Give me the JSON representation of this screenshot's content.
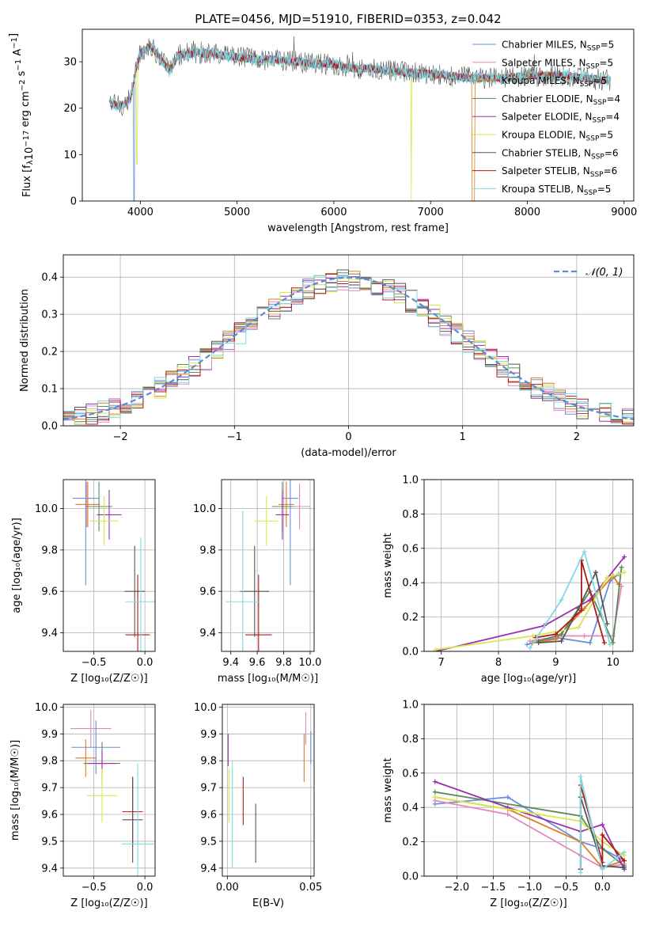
{
  "title": "PLATE=0456, MJD=51910, FIBERID=0353, z=0.042",
  "colors": {
    "chabrier_miles": "#6a8fd8",
    "salpeter_miles": "#e387c0",
    "kroupa_miles": "#e07b20",
    "chabrier_elodie": "#5b8a5b",
    "salpeter_elodie": "#9b2fae",
    "kroupa_elodie": "#d8e84a",
    "chabrier_stelib": "#555555",
    "salpeter_stelib": "#b01818",
    "kroupa_stelib": "#7fdbe0",
    "normal_curve": "#5b8ad4",
    "grid": "#b0b0b0"
  },
  "legend": [
    {
      "label": "Chabrier MILES, N",
      "sub": "SSP",
      "tail": "=5",
      "color_key": "chabrier_miles"
    },
    {
      "label": "Salpeter MILES, N",
      "sub": "SSP",
      "tail": "=5",
      "color_key": "salpeter_miles"
    },
    {
      "label": "Kroupa MILES, N",
      "sub": "SSP",
      "tail": "=5",
      "color_key": "kroupa_miles"
    },
    {
      "label": "Chabrier ELODIE, N",
      "sub": "SSP",
      "tail": "=4",
      "color_key": "chabrier_elodie"
    },
    {
      "label": "Salpeter ELODIE, N",
      "sub": "SSP",
      "tail": "=4",
      "color_key": "salpeter_elodie"
    },
    {
      "label": "Kroupa ELODIE, N",
      "sub": "SSP",
      "tail": "=5",
      "color_key": "kroupa_elodie"
    },
    {
      "label": "Chabrier STELIB, N",
      "sub": "SSP",
      "tail": "=6",
      "color_key": "chabrier_stelib"
    },
    {
      "label": "Salpeter STELIB, N",
      "sub": "SSP",
      "tail": "=6",
      "color_key": "salpeter_stelib"
    },
    {
      "label": "Kroupa STELIB, N",
      "sub": "SSP",
      "tail": "=5",
      "color_key": "kroupa_stelib"
    }
  ],
  "normal_legend": "𝒩(0, 1)",
  "chart_data": [
    {
      "id": "spectrum",
      "type": "line",
      "xlabel": "wavelength [Angstrom, rest frame]",
      "ylabel": "Flux [f",
      "ylabel_parts": [
        "Flux [f",
        "λ",
        "10",
        "−17",
        " erg cm",
        "−2",
        " s",
        "−1",
        " A",
        "−1",
        "]"
      ],
      "xlim": [
        3400,
        9100
      ],
      "ylim": [
        0,
        37
      ],
      "xticks": [
        4000,
        5000,
        6000,
        7000,
        8000,
        9000
      ],
      "yticks": [
        0,
        10,
        20,
        30
      ],
      "continuum_x": [
        3680,
        3800,
        3900,
        3960,
        4000,
        4100,
        4200,
        4300,
        4400,
        4600,
        4800,
        5000,
        5200,
        5400,
        5600,
        5800,
        6000,
        6200,
        6400,
        6600,
        6800,
        7000,
        7200,
        7400,
        7600,
        7800,
        8000,
        8200,
        8400,
        8600,
        8800
      ],
      "continuum_y": [
        21,
        20.5,
        22,
        29,
        32,
        33.5,
        31,
        28,
        31.5,
        32,
        31.5,
        31,
        30.5,
        30.5,
        30,
        29.5,
        29.5,
        28.5,
        28.5,
        28,
        27.5,
        27.5,
        27,
        26.5,
        26.5,
        26.5,
        27,
        27,
        27,
        26.5,
        26
      ],
      "drops": [
        {
          "series": "chabrier_miles",
          "x": 3935,
          "y": 0
        },
        {
          "series": "kroupa_elodie",
          "x": 3965,
          "y": 8
        },
        {
          "series": "kroupa_elodie",
          "x": 6800,
          "y": 0
        },
        {
          "series": "kroupa_miles",
          "x": 7430,
          "y": 0
        }
      ]
    },
    {
      "id": "residuals",
      "type": "histogram",
      "xlabel": "(data-model)/error",
      "ylabel": "Normed distribution",
      "xlim": [
        -2.5,
        2.5
      ],
      "ylim": [
        0,
        0.46
      ],
      "xticks": [
        -2,
        -1,
        0,
        1,
        2
      ],
      "yticks": [
        0.0,
        0.1,
        0.2,
        0.3,
        0.4
      ],
      "bin_width": 0.1,
      "bin_start": -2.5
    },
    {
      "id": "age_vs_Z",
      "type": "errorbar",
      "xlabel": "Z [log₁₀(Z/Z☉)]",
      "ylabel": "age  [log₁₀(age/yr)]",
      "xlim": [
        -0.8,
        0.1
      ],
      "ylim": [
        9.31,
        10.14
      ],
      "xticks": [
        -0.5,
        0.0
      ],
      "yticks": [
        9.4,
        9.6,
        9.8,
        10.0
      ],
      "points": [
        {
          "series": "chabrier_miles",
          "x": -0.58,
          "xerr": 0.13,
          "y": 10.05,
          "yerr": 0.42
        },
        {
          "series": "salpeter_miles",
          "x": -0.57,
          "xerr": 0.11,
          "y": 10.02,
          "yerr": 0.11
        },
        {
          "series": "kroupa_miles",
          "x": -0.56,
          "xerr": 0.12,
          "y": 10.02,
          "yerr": 0.11
        },
        {
          "series": "chabrier_elodie",
          "x": -0.45,
          "xerr": 0.13,
          "y": 10.01,
          "yerr": 0.12
        },
        {
          "series": "salpeter_elodie",
          "x": -0.35,
          "xerr": 0.12,
          "y": 9.97,
          "yerr": 0.12
        },
        {
          "series": "kroupa_elodie",
          "x": -0.4,
          "xerr": 0.14,
          "y": 9.94,
          "yerr": 0.12
        },
        {
          "series": "chabrier_stelib",
          "x": -0.1,
          "xerr": 0.1,
          "y": 9.6,
          "yerr": 0.22
        },
        {
          "series": "salpeter_stelib",
          "x": -0.07,
          "xerr": 0.12,
          "y": 9.39,
          "yerr": 0.29
        },
        {
          "series": "kroupa_stelib",
          "x": -0.04,
          "xerr": 0.15,
          "y": 9.55,
          "yerr": 0.31
        }
      ]
    },
    {
      "id": "age_vs_mass",
      "type": "errorbar",
      "xlabel": "mass [log₁₀(M/M☉)]",
      "ylabel": "",
      "xlim": [
        9.33,
        10.03
      ],
      "ylim": [
        9.31,
        10.14
      ],
      "xticks": [
        9.4,
        9.6,
        9.8,
        10.0
      ],
      "yticks": [
        9.4,
        9.6,
        9.8,
        10.0
      ],
      "points": [
        {
          "series": "chabrier_miles",
          "x": 9.85,
          "xerr": 0.06,
          "y": 10.05,
          "yerr": 0.42
        },
        {
          "series": "salpeter_miles",
          "x": 9.92,
          "xerr": 0.08,
          "y": 10.01,
          "yerr": 0.11
        },
        {
          "series": "kroupa_miles",
          "x": 9.82,
          "xerr": 0.06,
          "y": 10.02,
          "yerr": 0.11
        },
        {
          "series": "chabrier_elodie",
          "x": 9.79,
          "xerr": 0.08,
          "y": 10.01,
          "yerr": 0.12
        },
        {
          "series": "salpeter_elodie",
          "x": 9.79,
          "xerr": 0.05,
          "y": 9.97,
          "yerr": 0.12
        },
        {
          "series": "kroupa_elodie",
          "x": 9.67,
          "xerr": 0.09,
          "y": 9.94,
          "yerr": 0.12
        },
        {
          "series": "chabrier_stelib",
          "x": 9.58,
          "xerr": 0.11,
          "y": 9.6,
          "yerr": 0.22
        },
        {
          "series": "salpeter_stelib",
          "x": 9.61,
          "xerr": 0.1,
          "y": 9.39,
          "yerr": 0.29
        },
        {
          "series": "kroupa_stelib",
          "x": 9.49,
          "xerr": 0.13,
          "y": 9.55,
          "yerr": 0.44
        }
      ]
    },
    {
      "id": "weight_vs_age",
      "type": "line",
      "xlabel": "age  [log₁₀(age/yr)]",
      "ylabel": "mass weight",
      "xlim": [
        6.7,
        10.35
      ],
      "ylim": [
        0,
        1.0
      ],
      "xticks": [
        7,
        8,
        9,
        10
      ],
      "yticks": [
        0.0,
        0.2,
        0.4,
        0.6,
        0.8,
        1.0
      ],
      "series": [
        {
          "name": "chabrier_miles",
          "x": [
            8.5,
            9.0,
            9.6,
            9.95,
            10.1
          ],
          "y": [
            0.04,
            0.08,
            0.05,
            0.41,
            0.45
          ]
        },
        {
          "name": "salpeter_miles",
          "x": [
            8.55,
            9.1,
            9.5,
            10.0,
            10.15
          ],
          "y": [
            0.06,
            0.09,
            0.09,
            0.09,
            0.38
          ]
        },
        {
          "name": "kroupa_miles",
          "x": [
            8.6,
            9.0,
            9.5,
            10.0,
            10.1
          ],
          "y": [
            0.05,
            0.07,
            0.25,
            0.44,
            0.39
          ]
        },
        {
          "name": "chabrier_elodie",
          "x": [
            8.7,
            9.1,
            9.6,
            10.0,
            10.15
          ],
          "y": [
            0.06,
            0.1,
            0.35,
            0.05,
            0.49
          ]
        },
        {
          "name": "salpeter_elodie",
          "x": [
            6.9,
            8.8,
            9.6,
            10.2
          ],
          "y": [
            0.0,
            0.15,
            0.3,
            0.55
          ]
        },
        {
          "name": "kroupa_elodie",
          "x": [
            6.9,
            8.6,
            9.4,
            9.9,
            10.2
          ],
          "y": [
            0.01,
            0.09,
            0.14,
            0.43,
            0.46
          ]
        },
        {
          "name": "chabrier_stelib",
          "x": [
            8.7,
            9.1,
            9.4,
            9.7,
            9.9
          ],
          "y": [
            0.05,
            0.06,
            0.25,
            0.46,
            0.16
          ]
        },
        {
          "name": "salpeter_stelib",
          "x": [
            8.65,
            9.0,
            9.45,
            9.45,
            9.85
          ],
          "y": [
            0.08,
            0.1,
            0.24,
            0.53,
            0.05
          ]
        },
        {
          "name": "kroupa_stelib",
          "x": [
            8.55,
            9.1,
            9.5,
            9.95
          ],
          "y": [
            0.02,
            0.3,
            0.58,
            0.04
          ]
        }
      ]
    },
    {
      "id": "mass_vs_Z",
      "type": "errorbar",
      "xlabel": "Z [log₁₀(Z/Z☉)]",
      "ylabel": "mass [log₁₀(M/M☉)]",
      "xlim": [
        -0.8,
        0.1
      ],
      "ylim": [
        9.37,
        10.01
      ],
      "xticks": [
        -0.5,
        0.0
      ],
      "yticks": [
        9.4,
        9.5,
        9.6,
        9.7,
        9.8,
        9.9,
        10.0
      ],
      "points": [
        {
          "series": "salpeter_miles",
          "x": -0.53,
          "xerr": 0.2,
          "y": 9.92,
          "yerr": 0.07
        },
        {
          "series": "chabrier_miles",
          "x": -0.48,
          "xerr": 0.24,
          "y": 9.85,
          "yerr": 0.1
        },
        {
          "series": "kroupa_miles",
          "x": -0.58,
          "xerr": 0.1,
          "y": 9.81,
          "yerr": 0.07
        },
        {
          "series": "chabrier_elodie",
          "x": -0.42,
          "xerr": 0.18,
          "y": 9.79,
          "yerr": 0.08
        },
        {
          "series": "salpeter_elodie",
          "x": -0.42,
          "xerr": 0.14,
          "y": 9.79,
          "yerr": 0.05
        },
        {
          "series": "kroupa_elodie",
          "x": -0.42,
          "xerr": 0.15,
          "y": 9.67,
          "yerr": 0.1
        },
        {
          "series": "salpeter_stelib",
          "x": -0.12,
          "xerr": 0.1,
          "y": 9.61,
          "yerr": 0.13
        },
        {
          "series": "chabrier_stelib",
          "x": -0.12,
          "xerr": 0.1,
          "y": 9.58,
          "yerr": 0.16
        },
        {
          "series": "kroupa_stelib",
          "x": -0.07,
          "xerr": 0.16,
          "y": 9.49,
          "yerr": 0.3
        }
      ]
    },
    {
      "id": "mass_vs_ebv",
      "type": "errorbar",
      "xlabel": "E(B-V)",
      "ylabel": "",
      "xlim": [
        -0.003,
        0.052
      ],
      "ylim": [
        9.37,
        10.01
      ],
      "xticks": [
        0.0,
        0.05
      ],
      "yticks": [
        9.4,
        9.5,
        9.6,
        9.7,
        9.8,
        9.9,
        10.0
      ],
      "points": [
        {
          "series": "salpeter_elodie",
          "x": 0.0005,
          "xerr": 0,
          "y": 9.84,
          "yerr": 0.06
        },
        {
          "series": "kroupa_elodie",
          "x": 0.001,
          "xerr": 0,
          "y": 9.67,
          "yerr": 0.1
        },
        {
          "series": "kroupa_stelib",
          "x": 0.003,
          "xerr": 0,
          "y": 9.6,
          "yerr": 0.2
        },
        {
          "series": "salpeter_stelib",
          "x": 0.0095,
          "xerr": 0,
          "y": 9.65,
          "yerr": 0.09
        },
        {
          "series": "chabrier_stelib",
          "x": 0.017,
          "xerr": 0,
          "y": 9.53,
          "yerr": 0.11
        },
        {
          "series": "kroupa_miles",
          "x": 0.046,
          "xerr": 0,
          "y": 9.81,
          "yerr": 0.09
        },
        {
          "series": "salpeter_miles",
          "x": 0.047,
          "xerr": 0,
          "y": 9.92,
          "yerr": 0.06
        },
        {
          "series": "chabrier_miles",
          "x": 0.05,
          "xerr": 0,
          "y": 9.85,
          "yerr": 0.06
        }
      ]
    },
    {
      "id": "weight_vs_Z",
      "type": "line",
      "xlabel": "Z [log₁₀(Z/Z☉)]",
      "ylabel": "mass weight",
      "xlim": [
        -2.45,
        0.42
      ],
      "ylim": [
        0,
        1.0
      ],
      "xticks": [
        -2.0,
        -1.5,
        -1.0,
        -0.5,
        0.0
      ],
      "yticks": [
        0.0,
        0.2,
        0.4,
        0.6,
        0.8,
        1.0
      ],
      "series": [
        {
          "name": "chabrier_miles",
          "x": [
            -2.3,
            -1.3,
            -0.3,
            0.0,
            0.3
          ],
          "y": [
            0.42,
            0.46,
            0.2,
            0.16,
            0.09
          ]
        },
        {
          "name": "salpeter_miles",
          "x": [
            -2.3,
            -1.3,
            -0.3,
            0.0,
            0.3
          ],
          "y": [
            0.44,
            0.36,
            0.12,
            0.05,
            0.07
          ]
        },
        {
          "name": "kroupa_miles",
          "x": [
            -2.3,
            -1.3,
            -0.3,
            0.0,
            0.3
          ],
          "y": [
            0.46,
            0.39,
            0.2,
            0.05,
            0.09
          ]
        },
        {
          "name": "chabrier_elodie",
          "x": [
            -2.3,
            -0.3,
            0.0,
            0.3
          ],
          "y": [
            0.49,
            0.35,
            0.16,
            0.06
          ]
        },
        {
          "name": "salpeter_elodie",
          "x": [
            -2.3,
            -1.3,
            -0.3,
            0.0,
            0.3
          ],
          "y": [
            0.55,
            0.4,
            0.26,
            0.3,
            0.04
          ]
        },
        {
          "name": "kroupa_elodie",
          "x": [
            -2.3,
            -0.3,
            0.0,
            0.3
          ],
          "y": [
            0.46,
            0.32,
            0.2,
            0.12
          ]
        },
        {
          "name": "chabrier_stelib",
          "x": [
            -0.3,
            -0.3,
            0.0,
            0.3
          ],
          "y": [
            0.04,
            0.46,
            0.06,
            0.05
          ]
        },
        {
          "name": "salpeter_stelib",
          "x": [
            -0.3,
            -0.3,
            0.0,
            0.0,
            0.3
          ],
          "y": [
            0.04,
            0.53,
            0.08,
            0.24,
            0.09
          ]
        },
        {
          "name": "kroupa_stelib",
          "x": [
            -0.3,
            -0.3,
            0.0,
            0.3
          ],
          "y": [
            0.02,
            0.58,
            0.04,
            0.14
          ]
        }
      ]
    }
  ]
}
